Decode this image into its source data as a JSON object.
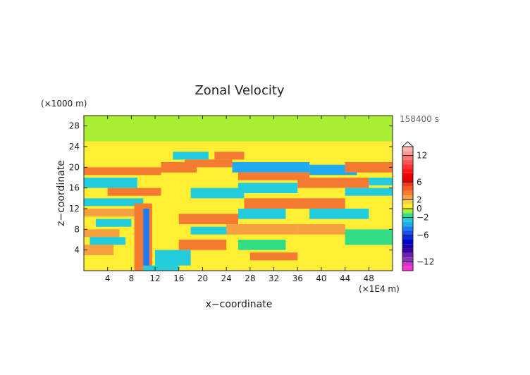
{
  "chart_data": {
    "type": "heatmap",
    "title": "Zonal Velocity",
    "xlabel": "x−coordinate",
    "ylabel": "z−coordinate",
    "x_unit": "(×1E4 m)",
    "y_unit": "(×1000 m)",
    "time_label": "158400 s",
    "xlim": [
      0,
      52
    ],
    "ylim": [
      0,
      30
    ],
    "x_ticks": [
      4,
      8,
      12,
      16,
      20,
      24,
      28,
      32,
      36,
      40,
      44,
      48
    ],
    "y_ticks": [
      4,
      8,
      12,
      16,
      20,
      24,
      28
    ],
    "grid": false,
    "colorbar": {
      "placement": "right",
      "range": [
        -14,
        14
      ],
      "ticks": [
        {
          "value": 12,
          "label": "12"
        },
        {
          "value": 6,
          "label": "6"
        },
        {
          "value": 2,
          "label": "2"
        },
        {
          "value": 0,
          "label": "0"
        },
        {
          "value": -2,
          "label": "−2"
        },
        {
          "value": -6,
          "label": "−6"
        },
        {
          "value": -12,
          "label": "−12"
        }
      ],
      "levels": [
        {
          "from": 13,
          "to": 14,
          "color": "#ffb3b3"
        },
        {
          "from": 12,
          "to": 13,
          "color": "#ff9999"
        },
        {
          "from": 11,
          "to": 12,
          "color": "#ff7777"
        },
        {
          "from": 10,
          "to": 11,
          "color": "#ff5555"
        },
        {
          "from": 9,
          "to": 10,
          "color": "#ff3333"
        },
        {
          "from": 8,
          "to": 9,
          "color": "#ff1a1a"
        },
        {
          "from": 7,
          "to": 8,
          "color": "#f20000"
        },
        {
          "from": 6,
          "to": 7,
          "color": "#e60000"
        },
        {
          "from": 5,
          "to": 6,
          "color": "#f03a1a"
        },
        {
          "from": 4,
          "to": 5,
          "color": "#f25a28"
        },
        {
          "from": 3,
          "to": 4,
          "color": "#f57a32"
        },
        {
          "from": 2,
          "to": 3,
          "color": "#f7a040"
        },
        {
          "from": 1,
          "to": 2,
          "color": "#ffd23c"
        },
        {
          "from": 0,
          "to": 1,
          "color": "#ffee33"
        },
        {
          "from": -1,
          "to": 0,
          "color": "#aaee33"
        },
        {
          "from": -2,
          "to": -1,
          "color": "#33dd88"
        },
        {
          "from": -3,
          "to": -2,
          "color": "#22ccdd"
        },
        {
          "from": -4,
          "to": -3,
          "color": "#22aaee"
        },
        {
          "from": -5,
          "to": -4,
          "color": "#1e7af0"
        },
        {
          "from": -6,
          "to": -5,
          "color": "#1450ee"
        },
        {
          "from": -7,
          "to": -6,
          "color": "#0a28dc"
        },
        {
          "from": -8,
          "to": -7,
          "color": "#0000cc"
        },
        {
          "from": -9,
          "to": -8,
          "color": "#1a00aa"
        },
        {
          "from": -10,
          "to": -9,
          "color": "#3a0099"
        },
        {
          "from": -11,
          "to": -10,
          "color": "#6a22aa"
        },
        {
          "from": -12,
          "to": -11,
          "color": "#8a33bb"
        },
        {
          "from": -13,
          "to": -12,
          "color": "#cc33cc"
        },
        {
          "from": -14,
          "to": -13,
          "color": "#ff33cc"
        }
      ]
    },
    "regions": [
      {
        "x": [
          0,
          52
        ],
        "z": [
          0,
          30
        ],
        "value": 0.5
      },
      {
        "x": [
          0,
          52
        ],
        "z": [
          21,
          25
        ],
        "value": 0.5
      },
      {
        "x": [
          0,
          52
        ],
        "z": [
          25,
          30
        ],
        "value": -0.5
      },
      {
        "x": [
          0,
          13
        ],
        "z": [
          18.5,
          20
        ],
        "value": 3
      },
      {
        "x": [
          0,
          9
        ],
        "z": [
          16,
          18
        ],
        "value": -3
      },
      {
        "x": [
          4,
          13
        ],
        "z": [
          14.5,
          16
        ],
        "value": 3
      },
      {
        "x": [
          0,
          10
        ],
        "z": [
          12.5,
          14
        ],
        "value": -2.5
      },
      {
        "x": [
          0,
          9
        ],
        "z": [
          10.5,
          12
        ],
        "value": 2.5
      },
      {
        "x": [
          2,
          8
        ],
        "z": [
          8.5,
          10
        ],
        "value": -2.5
      },
      {
        "x": [
          0,
          6
        ],
        "z": [
          6.5,
          8
        ],
        "value": 2.5
      },
      {
        "x": [
          1,
          7
        ],
        "z": [
          5,
          6.5
        ],
        "value": -2.5
      },
      {
        "x": [
          0,
          5
        ],
        "z": [
          3,
          5
        ],
        "value": 2.5
      },
      {
        "x": [
          8.5,
          11.5
        ],
        "z": [
          0,
          13
        ],
        "value": 3.5
      },
      {
        "x": [
          10,
          11
        ],
        "z": [
          1,
          12
        ],
        "value": -5
      },
      {
        "x": [
          12,
          18
        ],
        "z": [
          1,
          4
        ],
        "value": -2.5
      },
      {
        "x": [
          10,
          16
        ],
        "z": [
          0,
          1
        ],
        "value": -2.5
      },
      {
        "x": [
          13,
          19
        ],
        "z": [
          19,
          21
        ],
        "value": 3
      },
      {
        "x": [
          15,
          21
        ],
        "z": [
          21.5,
          23
        ],
        "value": -2.5
      },
      {
        "x": [
          17,
          25
        ],
        "z": [
          20,
          21.5
        ],
        "value": 3
      },
      {
        "x": [
          18,
          27
        ],
        "z": [
          14,
          16
        ],
        "value": -2.5
      },
      {
        "x": [
          16,
          26
        ],
        "z": [
          9,
          11
        ],
        "value": 3
      },
      {
        "x": [
          18,
          26
        ],
        "z": [
          7,
          8.5
        ],
        "value": -2.5
      },
      {
        "x": [
          16,
          24
        ],
        "z": [
          4,
          6
        ],
        "value": 3
      },
      {
        "x": [
          22,
          27
        ],
        "z": [
          21.5,
          23
        ],
        "value": 3
      },
      {
        "x": [
          25,
          38
        ],
        "z": [
          19,
          21
        ],
        "value": -3.5
      },
      {
        "x": [
          26,
          38
        ],
        "z": [
          17.5,
          19
        ],
        "value": 3.5
      },
      {
        "x": [
          26,
          36
        ],
        "z": [
          15,
          17
        ],
        "value": -3
      },
      {
        "x": [
          27,
          44
        ],
        "z": [
          12,
          14
        ],
        "value": 3
      },
      {
        "x": [
          26,
          34
        ],
        "z": [
          10,
          12
        ],
        "value": -2.5
      },
      {
        "x": [
          24,
          36
        ],
        "z": [
          7,
          9
        ],
        "value": 2.5
      },
      {
        "x": [
          26,
          34
        ],
        "z": [
          4,
          6
        ],
        "value": -2
      },
      {
        "x": [
          28,
          36
        ],
        "z": [
          2,
          3.5
        ],
        "value": 3
      },
      {
        "x": [
          38,
          46
        ],
        "z": [
          18.5,
          20.5
        ],
        "value": -3.5
      },
      {
        "x": [
          36,
          48
        ],
        "z": [
          16,
          18
        ],
        "value": 3
      },
      {
        "x": [
          44,
          52
        ],
        "z": [
          14.5,
          16
        ],
        "value": -3
      },
      {
        "x": [
          44,
          52
        ],
        "z": [
          19,
          21
        ],
        "value": 3
      },
      {
        "x": [
          48,
          52
        ],
        "z": [
          16.5,
          18
        ],
        "value": -2.5
      },
      {
        "x": [
          38,
          48
        ],
        "z": [
          10,
          12
        ],
        "value": -2.5
      },
      {
        "x": [
          36,
          44
        ],
        "z": [
          7,
          9
        ],
        "value": 2.5
      },
      {
        "x": [
          44,
          52
        ],
        "z": [
          5,
          8
        ],
        "value": -2
      }
    ]
  }
}
